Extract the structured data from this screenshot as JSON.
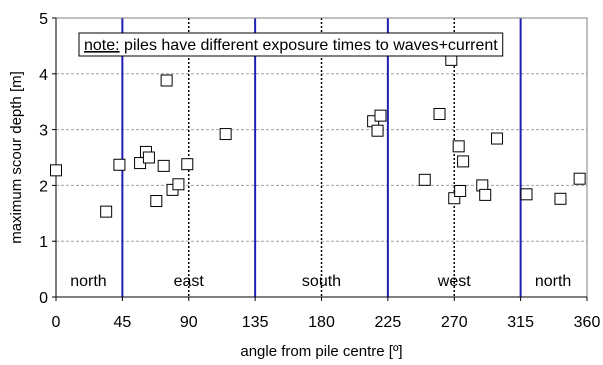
{
  "chart_data": {
    "type": "scatter",
    "xlabel": "angle from pile centre [º]",
    "ylabel": "maximum scour depth [m]",
    "xlim": [
      0,
      360
    ],
    "ylim": [
      0,
      5
    ],
    "xticks": [
      "0",
      "45",
      "90",
      "135",
      "180",
      "225",
      "270",
      "315",
      "360"
    ],
    "yticks": [
      "0",
      "1",
      "2",
      "3",
      "4",
      "5"
    ],
    "grid": true,
    "marker": "open-square",
    "note_prefix": "note:",
    "note_text": " piles have different exposure times to waves+current",
    "region_labels": [
      {
        "text": "north",
        "x": 22
      },
      {
        "text": "east",
        "x": 90
      },
      {
        "text": "south",
        "x": 180
      },
      {
        "text": "west",
        "x": 270
      },
      {
        "text": "north",
        "x": 337
      }
    ],
    "sector_boundaries": [
      45,
      135,
      225,
      315
    ],
    "cardinal_lines": [
      90,
      180,
      270
    ],
    "colors": {
      "sector_boundary": "#1f1fb4",
      "cardinal_line": "#000000",
      "grid": "#a0a0a0",
      "marker": "#000000"
    },
    "points": [
      {
        "x": 0,
        "y": 2.27
      },
      {
        "x": 34,
        "y": 1.53
      },
      {
        "x": 43,
        "y": 2.37
      },
      {
        "x": 57,
        "y": 2.4
      },
      {
        "x": 61,
        "y": 2.6
      },
      {
        "x": 63,
        "y": 2.5
      },
      {
        "x": 68,
        "y": 1.72
      },
      {
        "x": 73,
        "y": 2.35
      },
      {
        "x": 75,
        "y": 3.88
      },
      {
        "x": 79,
        "y": 1.92
      },
      {
        "x": 83,
        "y": 2.02
      },
      {
        "x": 89,
        "y": 2.38
      },
      {
        "x": 115,
        "y": 2.92
      },
      {
        "x": 215,
        "y": 3.15
      },
      {
        "x": 218,
        "y": 2.98
      },
      {
        "x": 220,
        "y": 3.25
      },
      {
        "x": 250,
        "y": 2.1
      },
      {
        "x": 260,
        "y": 3.28
      },
      {
        "x": 268,
        "y": 4.25
      },
      {
        "x": 270,
        "y": 1.77
      },
      {
        "x": 273,
        "y": 2.7
      },
      {
        "x": 274,
        "y": 1.9
      },
      {
        "x": 276,
        "y": 2.43
      },
      {
        "x": 289,
        "y": 2.0
      },
      {
        "x": 291,
        "y": 1.83
      },
      {
        "x": 299,
        "y": 2.84
      },
      {
        "x": 319,
        "y": 1.84
      },
      {
        "x": 342,
        "y": 1.76
      },
      {
        "x": 355,
        "y": 2.12
      }
    ]
  }
}
